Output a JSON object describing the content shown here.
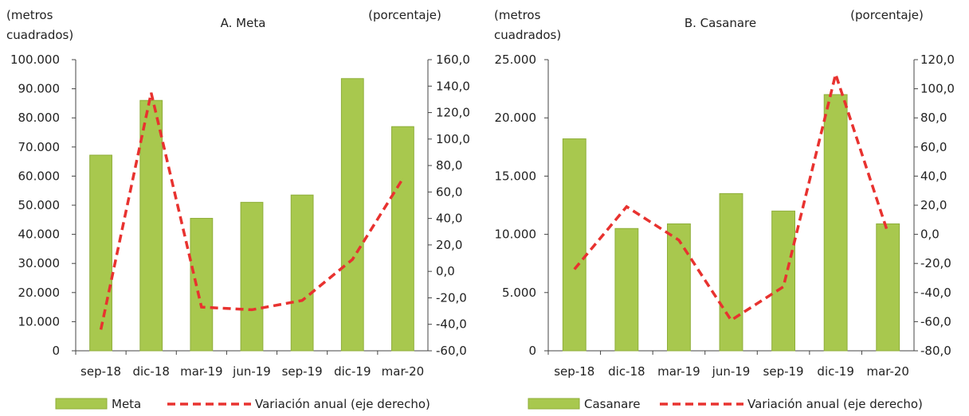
{
  "chart_data": [
    {
      "type": "bar",
      "title": "A. Meta",
      "left_axis_label": [
        "(metros",
        "cuadrados)"
      ],
      "right_axis_label": "(porcentaje)",
      "categories": [
        "sep-18",
        "dic-18",
        "mar-19",
        "jun-19",
        "sep-19",
        "dic-19",
        "mar-20"
      ],
      "bar_series": {
        "name": "Meta",
        "values": [
          67200,
          86000,
          45500,
          51000,
          53500,
          93500,
          77000
        ]
      },
      "line_series": {
        "name": "Variación anual (eje derecho)",
        "values": [
          -44,
          135,
          -27,
          -29,
          -22,
          9,
          70
        ]
      },
      "ylim_left": [
        0,
        100000
      ],
      "ylim_right": [
        -60,
        160
      ],
      "left_ticks": [
        "0",
        "10.000",
        "20.000",
        "30.000",
        "40.000",
        "50.000",
        "60.000",
        "70.000",
        "80.000",
        "90.000",
        "100.000"
      ],
      "right_ticks": [
        "-60,0",
        "-40,0",
        "-20,0",
        "0,0",
        "20,0",
        "40,0",
        "60,0",
        "80,0",
        "100,0",
        "120,0",
        "140,0",
        "160,0"
      ],
      "bar_color": "#a8c84e",
      "line_color": "#e8322f",
      "legend_position": "bottom"
    },
    {
      "type": "bar",
      "title": "B. Casanare",
      "left_axis_label": [
        "(metros",
        "cuadrados)"
      ],
      "right_axis_label": "(porcentaje)",
      "categories": [
        "sep-18",
        "dic-18",
        "mar-19",
        "jun-19",
        "sep-19",
        "dic-19",
        "mar-20"
      ],
      "bar_series": {
        "name": "Casanare",
        "values": [
          18200,
          10500,
          10900,
          13500,
          12000,
          22000,
          10900
        ]
      },
      "line_series": {
        "name": "Variación anual (eje derecho)",
        "values": [
          -24,
          19,
          -4,
          -59,
          -36,
          110,
          1
        ]
      },
      "ylim_left": [
        0,
        25000
      ],
      "ylim_right": [
        -80,
        120
      ],
      "left_ticks": [
        "0",
        "5.000",
        "10.000",
        "15.000",
        "20.000",
        "25.000"
      ],
      "right_ticks": [
        "-80,0",
        "-60,0",
        "-40,0",
        "-20,0",
        "0,0",
        "20,0",
        "40,0",
        "60,0",
        "80,0",
        "100,0",
        "120,0"
      ],
      "bar_color": "#a8c84e",
      "line_color": "#e8322f",
      "legend_position": "bottom"
    }
  ]
}
